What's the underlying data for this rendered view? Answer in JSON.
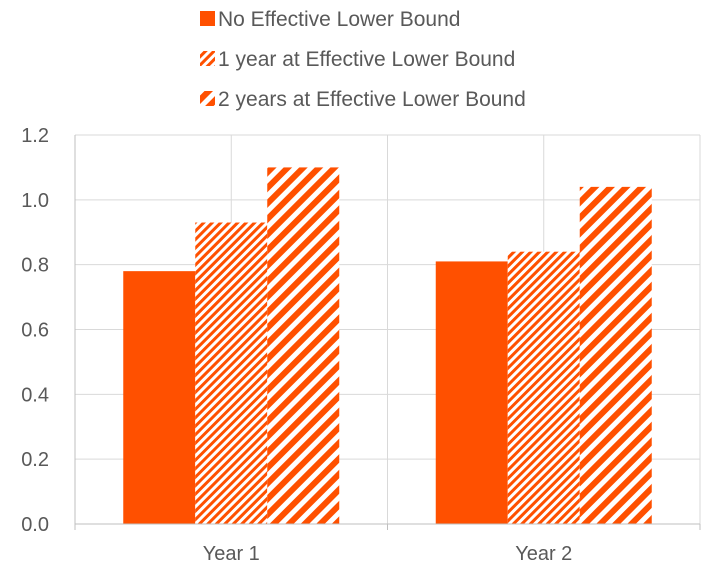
{
  "colors": {
    "accent": "#ff5000",
    "grid": "#d9d9d9",
    "axis": "#bfbfbf",
    "text": "#595959"
  },
  "chart_data": {
    "type": "bar",
    "categories": [
      "Year 1",
      "Year 2"
    ],
    "series": [
      {
        "name": "No Effective Lower Bound",
        "pattern": "solid",
        "values": [
          0.78,
          0.81
        ]
      },
      {
        "name": "1 year at Effective Lower Bound",
        "pattern": "fine-diagonal-stripes",
        "values": [
          0.93,
          0.84
        ]
      },
      {
        "name": "2 years at Effective Lower Bound",
        "pattern": "wide-diagonal-stripes",
        "values": [
          1.1,
          1.04
        ]
      }
    ],
    "yticks": [
      "0.0",
      "0.2",
      "0.4",
      "0.6",
      "0.8",
      "1.0",
      "1.2"
    ],
    "ylim": [
      0,
      1.2
    ],
    "grid": true,
    "legend_position": "top"
  }
}
